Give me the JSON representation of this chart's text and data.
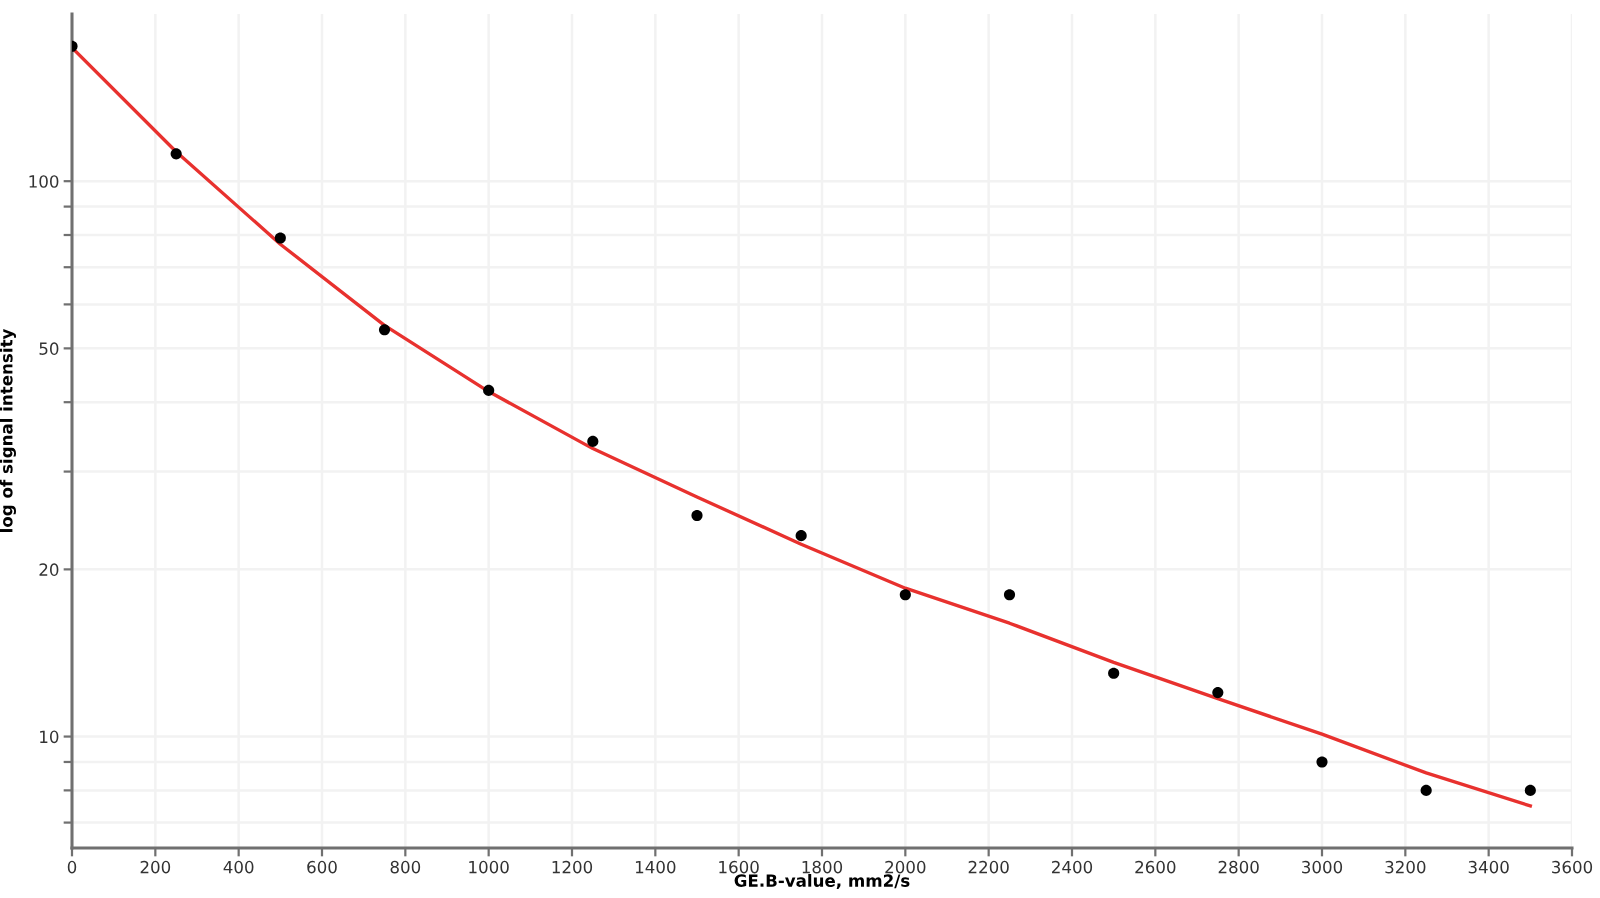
{
  "chart_data": {
    "type": "scatter",
    "xlabel": "GE.B-value, mm2/s",
    "ylabel": "log of signal intensity",
    "log": "y",
    "grid": true,
    "xlim": [
      0,
      3600
    ],
    "xticks": [
      0,
      200,
      400,
      600,
      800,
      1000,
      1200,
      1400,
      1600,
      1800,
      2000,
      2200,
      2400,
      2600,
      2800,
      3000,
      3200,
      3400,
      3600
    ],
    "ylim": [
      6.3,
      200
    ],
    "yticks": [
      {
        "value": 7,
        "label": null
      },
      {
        "value": 8,
        "label": null
      },
      {
        "value": 9,
        "label": null
      },
      10,
      20,
      {
        "value": 30,
        "label": null
      },
      {
        "value": 40,
        "label": null
      },
      50,
      {
        "value": 60,
        "label": null
      },
      {
        "value": 70,
        "label": null
      },
      {
        "value": 80,
        "label": null
      },
      {
        "value": 90,
        "label": null
      },
      100
    ],
    "series": [
      {
        "color": "#000000",
        "marker": "circle",
        "x": [
          0,
          250,
          500,
          750,
          1000,
          1250,
          1500,
          1750,
          2000,
          2250,
          2500,
          2750,
          3000,
          3250,
          3500
        ],
        "values": [
          175,
          112,
          79,
          54,
          42,
          34,
          25,
          23,
          18,
          18,
          13,
          12,
          9,
          8,
          8
        ]
      },
      {
        "type": "line",
        "color": "#e8312e",
        "line_style": "solid",
        "marker": "none",
        "x": [
          0,
          250,
          500,
          750,
          1000,
          1250,
          1500,
          1750,
          2000,
          2250,
          2500,
          2750,
          3000,
          3250,
          3500
        ],
        "values": [
          174,
          113,
          77,
          55,
          41.8,
          33,
          27,
          22.2,
          18.5,
          16,
          13.6,
          11.7,
          10.1,
          8.6,
          7.5
        ]
      }
    ]
  }
}
